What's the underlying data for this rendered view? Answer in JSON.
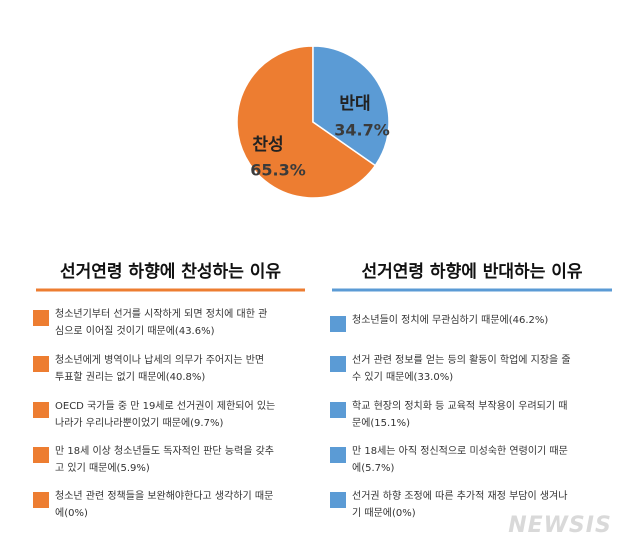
{
  "chart_data": {
    "type": "pie",
    "categories": [
      "찬성",
      "반대"
    ],
    "values": [
      65.3,
      34.7
    ],
    "value_labels": [
      "65.3%",
      "34.7%"
    ],
    "colors": [
      "#ed7d31",
      "#5b9bd5"
    ]
  },
  "lists": [
    {
      "heading": "선거연령 하향에 찬성하는 이유",
      "color": "#ed7d31",
      "items": [
        {
          "lines": [
            "청소년기부터 선거를 시작하게 되면 정치에 대한 관",
            "심으로 이어질 것이기 때문에(43.6%)"
          ]
        },
        {
          "lines": [
            "청소년에게 병역이나 납세의 의무가 주어지는 반면",
            "투표할 권리는 없기 때문에(40.8%)"
          ]
        },
        {
          "lines": [
            "OECD 국가들 중 만 19세로 선거권이 제한되어 있는",
            "나라가 우리나라뿐이었기 때문에(9.7%)"
          ]
        },
        {
          "lines": [
            "만 18세 이상 청소년들도 독자적인 판단 능력을 갖추",
            "고 있기 때문에(5.9%)"
          ]
        },
        {
          "lines": [
            "청소년 관련 정책들을 보완해야한다고 생각하기 때문",
            "에(0%)"
          ]
        }
      ]
    },
    {
      "heading": "선거연령 하향에 반대하는 이유",
      "color": "#5b9bd5",
      "items": [
        {
          "lines": [
            "청소년들이 정치에 무관심하기 때문에(46.2%)"
          ]
        },
        {
          "lines": [
            "선거 관련 정보를 얻는 등의 활동이 학업에 지장을 줄",
            "수 있기 때문에(33.0%)"
          ]
        },
        {
          "lines": [
            "학교 현장의 정치화 등 교육적 부작용이 우려되기 때",
            "문에(15.1%)"
          ]
        },
        {
          "lines": [
            "만 18세는 아직 정신적으로 미성숙한 연령이기 때문",
            "에(5.7%)"
          ]
        },
        {
          "lines": [
            "선거권 하향 조정에 따른 추가적 재정 부담이 생겨나",
            "기 때문에(0%)"
          ]
        }
      ]
    }
  ],
  "watermark": "NEWSIS"
}
